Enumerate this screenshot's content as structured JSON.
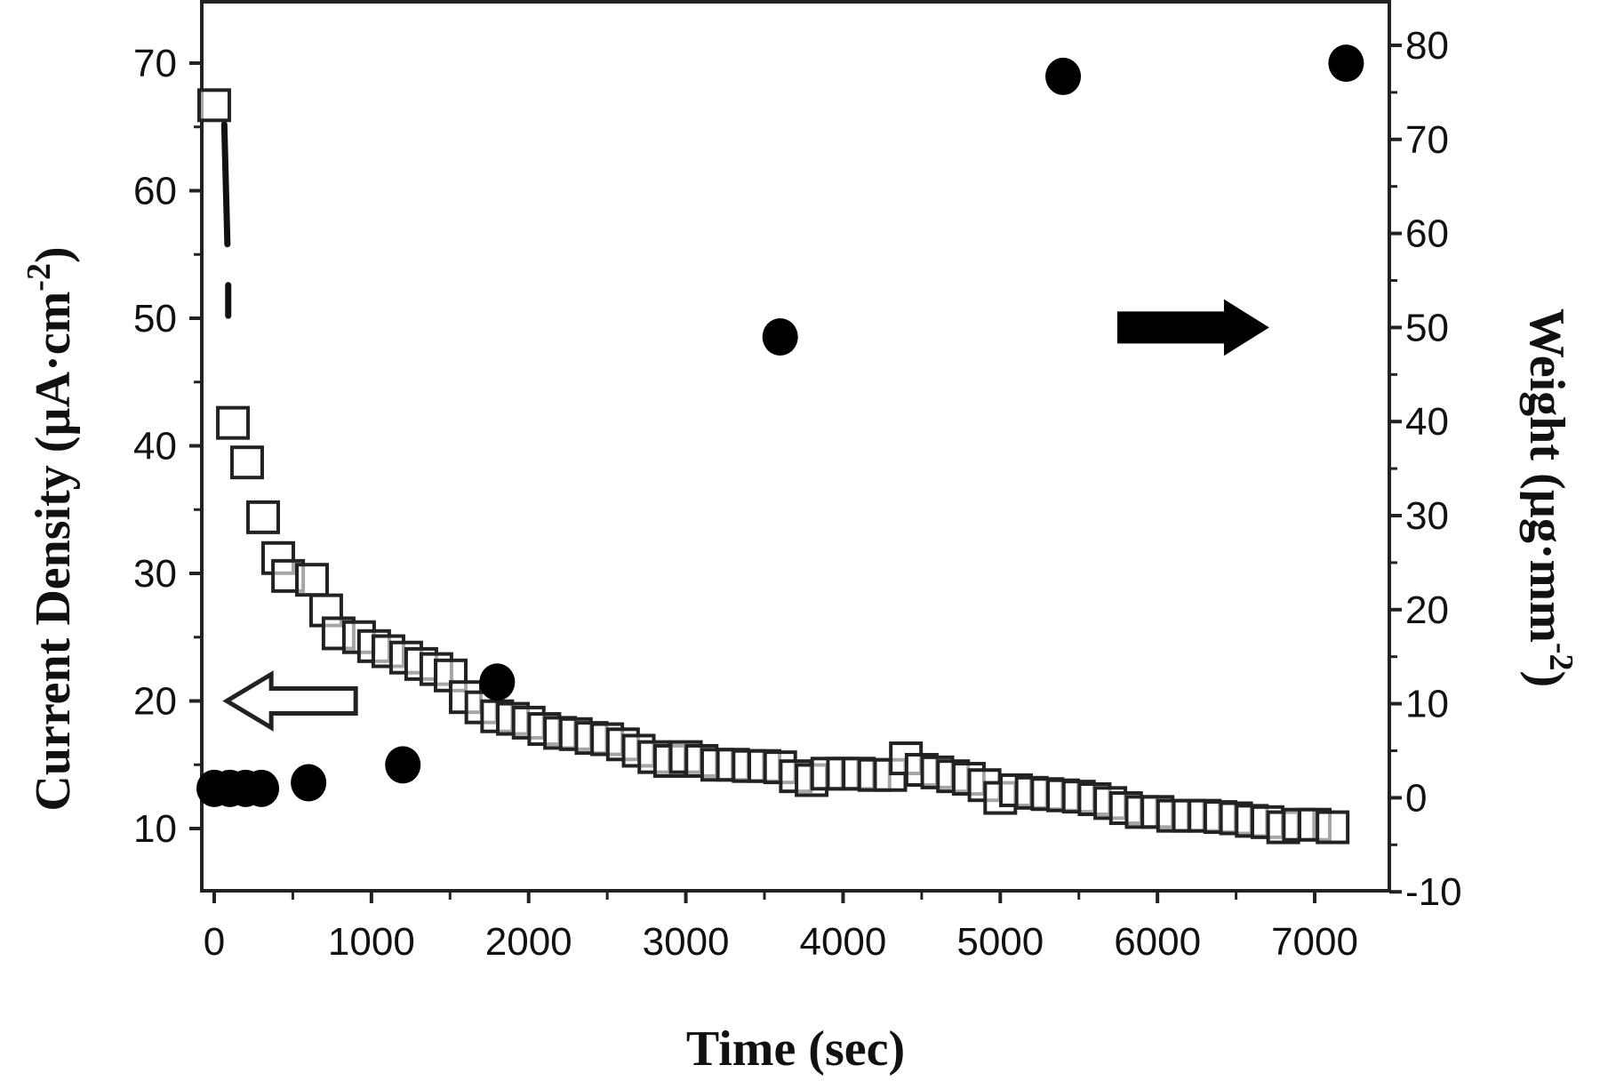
{
  "chart_data": {
    "type": "scatter",
    "title": "",
    "xlabel": "Time (sec)",
    "ylabel": "Current Density (µA·cm⁻²)",
    "y2label": "Weight  (µg·mm⁻²)",
    "xlim": [
      -100,
      7500
    ],
    "ylim": [
      5,
      75
    ],
    "y2lim": [
      -10,
      85
    ],
    "grid": false,
    "legend": "none (arrows indicate axis: open arrow → left axis, filled arrow → right axis)",
    "x_ticks": [
      0,
      1000,
      2000,
      3000,
      4000,
      5000,
      6000,
      7000
    ],
    "y_ticks": [
      10,
      20,
      30,
      40,
      50,
      60,
      70
    ],
    "y2_ticks": [
      -10,
      0,
      10,
      20,
      30,
      40,
      50,
      60,
      70,
      80
    ],
    "series": [
      {
        "name": "Current Density",
        "axis": "left",
        "marker": "open-square",
        "color": "#222222",
        "points": [
          [
            0,
            66.7
          ],
          [
            119,
            41.8
          ],
          [
            209,
            38.7
          ],
          [
            311,
            34.4
          ],
          [
            407,
            31.2
          ],
          [
            470,
            29.8
          ],
          [
            622,
            29.5
          ],
          [
            712,
            27.1
          ],
          [
            791,
            25.3
          ],
          [
            921,
            25.0
          ],
          [
            1017,
            24.3
          ],
          [
            1108,
            23.9
          ],
          [
            1221,
            23.4
          ],
          [
            1317,
            22.9
          ],
          [
            1413,
            22.5
          ],
          [
            1504,
            22.0
          ],
          [
            1600,
            20.3
          ],
          [
            1700,
            19.5
          ],
          [
            1800,
            18.8
          ],
          [
            1900,
            18.6
          ],
          [
            2000,
            18.3
          ],
          [
            2100,
            17.8
          ],
          [
            2200,
            17.5
          ],
          [
            2300,
            17.4
          ],
          [
            2400,
            17.1
          ],
          [
            2500,
            17.0
          ],
          [
            2600,
            16.6
          ],
          [
            2700,
            16.1
          ],
          [
            2800,
            15.6
          ],
          [
            2900,
            15.3
          ],
          [
            3000,
            15.6
          ],
          [
            3100,
            15.3
          ],
          [
            3200,
            15.0
          ],
          [
            3300,
            15.0
          ],
          [
            3400,
            14.9
          ],
          [
            3500,
            14.9
          ],
          [
            3600,
            14.8
          ],
          [
            3700,
            14.1
          ],
          [
            3800,
            13.8
          ],
          [
            3900,
            14.3
          ],
          [
            4000,
            14.3
          ],
          [
            4100,
            14.3
          ],
          [
            4200,
            14.2
          ],
          [
            4300,
            14.2
          ],
          [
            4400,
            15.5
          ],
          [
            4500,
            14.6
          ],
          [
            4600,
            14.4
          ],
          [
            4700,
            14.1
          ],
          [
            4800,
            13.9
          ],
          [
            4900,
            13.4
          ],
          [
            5000,
            12.4
          ],
          [
            5100,
            13.0
          ],
          [
            5200,
            12.8
          ],
          [
            5300,
            12.7
          ],
          [
            5400,
            12.6
          ],
          [
            5500,
            12.5
          ],
          [
            5600,
            12.3
          ],
          [
            5700,
            12.0
          ],
          [
            5800,
            11.6
          ],
          [
            5900,
            11.3
          ],
          [
            6000,
            11.3
          ],
          [
            6100,
            11.0
          ],
          [
            6200,
            11.0
          ],
          [
            6300,
            11.0
          ],
          [
            6400,
            10.9
          ],
          [
            6500,
            10.8
          ],
          [
            6600,
            10.6
          ],
          [
            6700,
            10.5
          ],
          [
            6800,
            10.1
          ],
          [
            6900,
            10.3
          ],
          [
            7000,
            10.3
          ],
          [
            7114,
            10.1
          ]
        ],
        "dense_trace": [
          [
            30,
            65.2
          ],
          [
            50,
            55.8
          ],
          [
            55,
            52.6
          ],
          [
            55,
            50.2
          ]
        ]
      },
      {
        "name": "Weight",
        "axis": "right",
        "marker": "filled-circle",
        "color": "#000000",
        "points": [
          [
            0,
            1.0
          ],
          [
            100,
            1.0
          ],
          [
            200,
            1.0
          ],
          [
            300,
            1.0
          ],
          [
            600,
            1.6
          ],
          [
            1200,
            3.5
          ],
          [
            1800,
            12.3
          ],
          [
            3600,
            49.0
          ],
          [
            5400,
            76.7
          ],
          [
            7200,
            78.1
          ]
        ]
      }
    ],
    "annotations": [
      {
        "type": "arrow",
        "style": "open",
        "direction": "left",
        "x_from": 900,
        "x_to": 80,
        "y": 20,
        "axis": "left",
        "meaning": "current density uses left axis"
      },
      {
        "type": "arrow",
        "style": "filled",
        "direction": "right",
        "x_from": 5750,
        "x_to": 6700,
        "y": 50,
        "axis": "right",
        "meaning": "weight uses right axis"
      }
    ]
  },
  "labels": {
    "xlabel": "Time (sec)",
    "ylabel_main": "Current Density (µA·cm",
    "ylabel_sup": "-2",
    "ylabel_close": ")",
    "y2label_main": "Weight  (µg·mm",
    "y2label_sup": "-2",
    "y2label_close": ")"
  }
}
